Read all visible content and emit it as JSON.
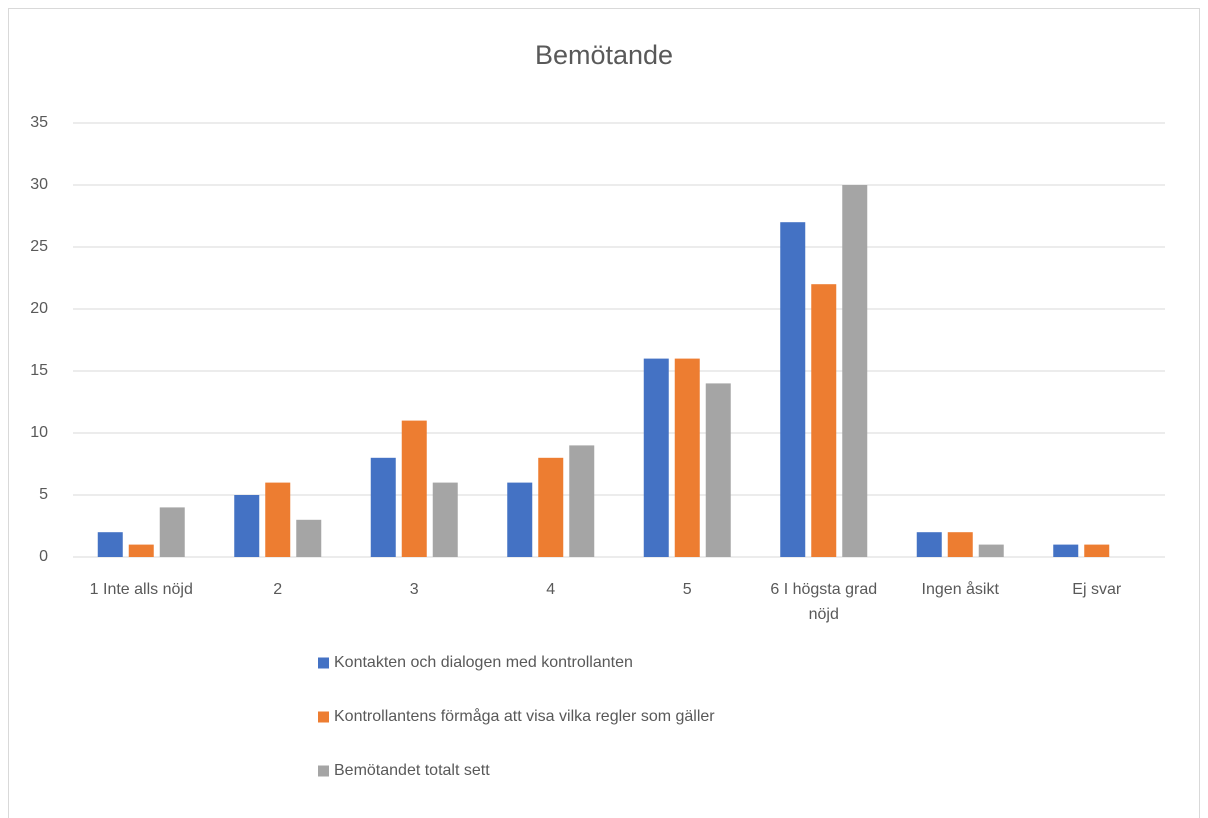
{
  "chart_data": {
    "type": "bar",
    "title": "Bemötande",
    "categories": [
      "1 Inte alls nöjd",
      "2",
      "3",
      "4",
      "5",
      "6 I högsta grad nöjd",
      "Ingen åsikt",
      "Ej svar"
    ],
    "series": [
      {
        "name": "Kontakten och dialogen med kontrollanten",
        "color": "#4472c4",
        "values": [
          2,
          5,
          8,
          6,
          16,
          27,
          2,
          1
        ]
      },
      {
        "name": "Kontrollantens förmåga att visa vilka regler som gäller",
        "color": "#ed7d31",
        "values": [
          1,
          6,
          11,
          8,
          16,
          22,
          2,
          1
        ]
      },
      {
        "name": "Bemötandet totalt sett",
        "color": "#a5a5a5",
        "values": [
          4,
          3,
          6,
          9,
          14,
          30,
          1,
          0
        ]
      }
    ],
    "ylim": [
      0,
      35
    ],
    "yticks": [
      0,
      5,
      10,
      15,
      20,
      25,
      30,
      35
    ],
    "grid": true,
    "legend": "bottom"
  }
}
